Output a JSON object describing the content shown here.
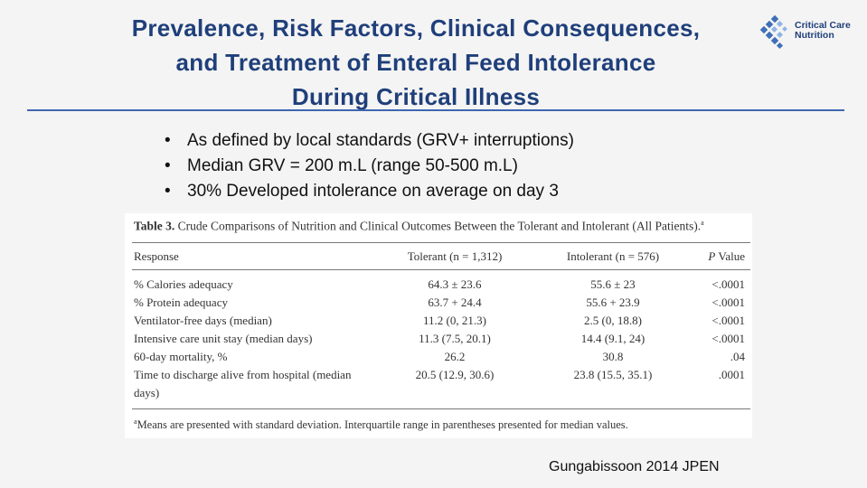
{
  "slide": {
    "title_lines": [
      "Prevalence, Risk Factors, Clinical Consequences,",
      "and Treatment of Enteral Feed Intolerance",
      "During Critical Illness"
    ],
    "logo": {
      "line1": "Critical Care",
      "line2": "Nutrition",
      "icon": "ccn-diamond-logo-icon"
    },
    "bullets": [
      "As defined by local standards (GRV+ interruptions)",
      "Median GRV = 200 m.L (range 50-500 m.L)",
      "30% Developed intolerance on average on day 3"
    ],
    "citation": "Gungabissoon 2014 JPEN"
  },
  "table": {
    "caption_label": "Table 3.",
    "caption_text": "Crude Comparisons of Nutrition and Clinical Outcomes Between the Tolerant and Intolerant (All Patients).",
    "caption_sup": "a",
    "headers": {
      "response": "Response",
      "tolerant": "Tolerant (n = 1,312)",
      "intolerant": "Intolerant (n = 576)",
      "p_letter": "P",
      "p_rest": " Value"
    },
    "rows": [
      {
        "response": "% Calories adequacy",
        "tolerant": "64.3 ± 23.6",
        "intolerant": "55.6 ± 23",
        "p": "<.0001"
      },
      {
        "response": "% Protein adequacy",
        "tolerant": "63.7 + 24.4",
        "intolerant": "55.6 + 23.9",
        "p": "<.0001"
      },
      {
        "response": "Ventilator-free days (median)",
        "tolerant": "11.2 (0, 21.3)",
        "intolerant": "2.5 (0, 18.8)",
        "p": "<.0001"
      },
      {
        "response": "Intensive care unit stay (median days)",
        "tolerant": "11.3 (7.5, 20.1)",
        "intolerant": "14.4 (9.1, 24)",
        "p": "<.0001"
      },
      {
        "response": "60-day mortality, %",
        "tolerant": "26.2",
        "intolerant": "30.8",
        "p": ".04"
      },
      {
        "response": "Time to discharge alive from hospital (median",
        "response_line2": "days)",
        "tolerant": "20.5 (12.9, 30.6)",
        "intolerant": "23.8 (15.5, 35.1)",
        "p": ".0001"
      }
    ],
    "footnote_sup": "a",
    "footnote_text": "Means are presented with standard deviation. Interquartile range in parentheses presented for median values."
  }
}
